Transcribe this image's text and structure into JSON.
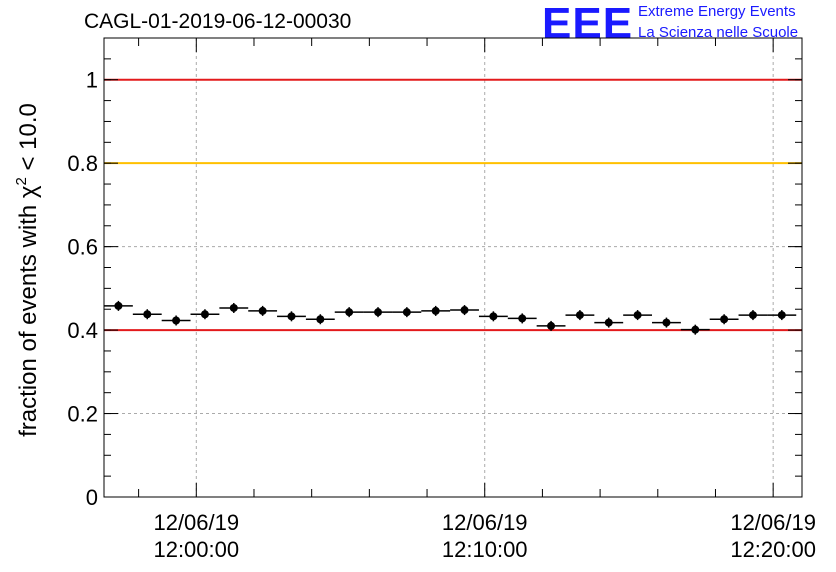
{
  "header": {
    "run_title": "CAGL-01-2019-06-12-00030"
  },
  "logo": {
    "letters": "EEE",
    "line1": "Extreme Energy Events",
    "line2": "La Scienza nelle Scuole",
    "color": "#1a1aff"
  },
  "chart_data": {
    "type": "scatter",
    "ylabel_prefix": "fraction of events with ",
    "ylabel_symbol": "χ",
    "ylabel_superscript": "2",
    "ylabel_suffix": " < 10.0",
    "xlabel": "",
    "ylim": [
      0,
      1.1
    ],
    "y_ticks": [
      "0",
      "0.2",
      "0.4",
      "0.6",
      "0.8",
      "1"
    ],
    "x_ticks": [
      {
        "date": "12/06/19",
        "time": "12:00:00",
        "minute": 0
      },
      {
        "date": "12/06/19",
        "time": "12:10:00",
        "minute": 10
      },
      {
        "date": "12/06/19",
        "time": "12:20:00",
        "minute": 20
      }
    ],
    "x_range_minutes": [
      -3.2,
      21.0
    ],
    "bin_width_minutes": 1,
    "thresholds": [
      {
        "value": 1.0,
        "color": "#e31a1c"
      },
      {
        "value": 0.8,
        "color": "#ffc000"
      },
      {
        "value": 0.4,
        "color": "#e31a1c"
      }
    ],
    "grid": true,
    "marker_color": "#000000",
    "points": [
      {
        "x": -2.7,
        "y": 0.458
      },
      {
        "x": -1.7,
        "y": 0.438
      },
      {
        "x": -0.7,
        "y": 0.423
      },
      {
        "x": 0.3,
        "y": 0.438
      },
      {
        "x": 1.3,
        "y": 0.453
      },
      {
        "x": 2.3,
        "y": 0.446
      },
      {
        "x": 3.3,
        "y": 0.433
      },
      {
        "x": 4.3,
        "y": 0.426
      },
      {
        "x": 5.3,
        "y": 0.443
      },
      {
        "x": 6.3,
        "y": 0.443
      },
      {
        "x": 7.3,
        "y": 0.443
      },
      {
        "x": 8.3,
        "y": 0.446
      },
      {
        "x": 9.3,
        "y": 0.448
      },
      {
        "x": 10.3,
        "y": 0.433
      },
      {
        "x": 11.3,
        "y": 0.428
      },
      {
        "x": 12.3,
        "y": 0.41
      },
      {
        "x": 13.3,
        "y": 0.436
      },
      {
        "x": 14.3,
        "y": 0.418
      },
      {
        "x": 15.3,
        "y": 0.436
      },
      {
        "x": 16.3,
        "y": 0.418
      },
      {
        "x": 17.3,
        "y": 0.401
      },
      {
        "x": 18.3,
        "y": 0.426
      },
      {
        "x": 19.3,
        "y": 0.436
      },
      {
        "x": 20.3,
        "y": 0.436
      }
    ]
  }
}
